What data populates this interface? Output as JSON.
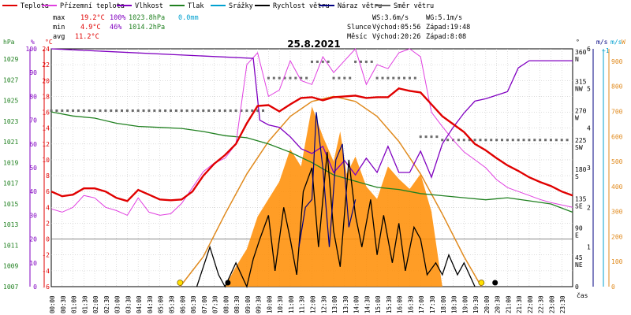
{
  "chart_data": {
    "type": "line",
    "date": "25.8.2021",
    "legend": [
      {
        "label": "Teplota",
        "color": "#e00000"
      },
      {
        "label": "Přízemní teplota",
        "color": "#e040e0"
      },
      {
        "label": "Vlhkost",
        "color": "#8000c0"
      },
      {
        "label": "Tlak",
        "color": "#208020"
      },
      {
        "label": "Srážky",
        "color": "#00a0d0"
      },
      {
        "label": "Rychlost větru",
        "color": "#000000"
      },
      {
        "label": "Náraz větru",
        "color": "#000080"
      },
      {
        "label": "Směr větru",
        "color": "#606060"
      }
    ],
    "stats": {
      "max_label": "max",
      "max_temp": "19.2°C",
      "max_hum": "100%",
      "max_press": "1023.8hPa",
      "max_rain": "0.0mm",
      "min_label": "min",
      "min_temp": "4.9°C",
      "min_hum": "46%",
      "min_press": "1014.2hPa",
      "avg_label": "avg",
      "avg_temp": "11.2°C"
    },
    "wind_info": {
      "ws": "WS:3.6m/s",
      "wg": "WG:5.1m/s",
      "sun_label": "Slunce",
      "sunrise": "Východ:05:56",
      "sunset": "Západ:19:48",
      "moon_label": "Měsíc",
      "moonrise": "Východ:20:26",
      "moonset": "Západ:8:08"
    },
    "axes": {
      "hpa_unit": "hPa",
      "pct_unit": "%",
      "c_unit": "°C",
      "deg_unit": "°",
      "ms_unit": "m/s",
      "ms_unit2": "m/s",
      "w_unit": "W",
      "time_unit": "čas",
      "hpa_ticks": [
        "1029",
        "1027",
        "1025",
        "1023",
        "1021",
        "1019",
        "1017",
        "1015",
        "1013",
        "1011",
        "1009",
        "1007"
      ],
      "pct_ticks": [
        "100",
        "90",
        "80",
        "70",
        "60",
        "50",
        "40",
        "30",
        "20",
        "10",
        "0"
      ],
      "c_ticks": [
        "24",
        "22",
        "20",
        "18",
        "16",
        "14",
        "12",
        "10",
        "8",
        "6",
        "4",
        "2",
        "0",
        "-2",
        "-4",
        "-6"
      ],
      "dir_ticks": [
        [
          "360",
          "N"
        ],
        [
          "315",
          "NW"
        ],
        [
          "270",
          "W"
        ],
        [
          "225",
          "SW"
        ],
        [
          "180",
          "S"
        ],
        [
          "135",
          "SE"
        ],
        [
          "90",
          "E"
        ],
        [
          "45",
          "NE"
        ],
        [
          "0",
          ""
        ]
      ],
      "ms_ticks": [
        "6",
        "5",
        "4",
        "3",
        "2",
        "1"
      ],
      "ms_top": "~1",
      "w_ticks": [
        "900",
        "800",
        "700",
        "600",
        "500",
        "400",
        "300",
        "200",
        "100",
        "0"
      ],
      "time_ticks": [
        "00:00",
        "00:30",
        "01:00",
        "01:30",
        "02:00",
        "02:30",
        "03:00",
        "03:30",
        "04:00",
        "04:30",
        "05:00",
        "05:30",
        "06:00",
        "06:30",
        "07:00",
        "07:30",
        "08:00",
        "08:30",
        "09:00",
        "09:30",
        "10:00",
        "10:30",
        "11:00",
        "11:30",
        "12:00",
        "12:30",
        "13:00",
        "13:30",
        "14:00",
        "14:30",
        "15:00",
        "15:30",
        "16:00",
        "16:30",
        "17:00",
        "17:30",
        "18:00",
        "18:30",
        "19:00",
        "19:30",
        "20:00",
        "20:30",
        "21:00",
        "21:30",
        "22:00",
        "22:30",
        "23:00",
        "23:30"
      ]
    },
    "series": {
      "temperature": {
        "hours": [
          0,
          0.5,
          1,
          1.5,
          2,
          2.5,
          3,
          3.5,
          4,
          4.5,
          5,
          5.5,
          6,
          6.5,
          7,
          7.5,
          8,
          8.5,
          9,
          9.5,
          10,
          10.5,
          11,
          11.5,
          12,
          12.5,
          13,
          13.5,
          14,
          14.5,
          15,
          15.5,
          16,
          16.5,
          17,
          17.5,
          18,
          18.5,
          19,
          19.5,
          20,
          20.5,
          21,
          21.5,
          22,
          22.5,
          23,
          23.5,
          24
        ],
        "values": [
          6.0,
          5.4,
          5.6,
          6.4,
          6.4,
          6.0,
          5.2,
          4.8,
          6.2,
          5.6,
          5.0,
          4.9,
          5.0,
          6.0,
          8.0,
          9.5,
          10.6,
          12.0,
          14.6,
          16.8,
          16.9,
          16.1,
          17.0,
          17.8,
          17.9,
          17.5,
          17.9,
          18.0,
          18.1,
          17.8,
          17.9,
          17.9,
          19.0,
          18.7,
          18.5,
          17.0,
          15.5,
          14.5,
          13.5,
          12.0,
          11.2,
          10.2,
          9.3,
          8.6,
          7.8,
          7.2,
          6.7,
          6.0,
          5.5
        ]
      },
      "ground_temperature": {
        "hours": [
          0,
          0.5,
          1,
          1.5,
          2,
          2.5,
          3,
          3.5,
          4,
          4.5,
          5,
          5.5,
          6,
          6.5,
          7,
          7.5,
          8,
          8.5,
          9,
          9.5,
          10,
          10.5,
          11,
          11.5,
          12,
          12.5,
          13,
          13.5,
          14,
          14.5,
          15,
          15.5,
          16,
          16.5,
          17,
          17.5,
          18,
          18.5,
          19,
          19.5,
          20,
          20.5,
          21,
          21.5,
          22,
          22.5,
          23,
          23.5,
          24
        ],
        "values": [
          3.8,
          3.4,
          4.0,
          5.5,
          5.2,
          4.0,
          3.6,
          3.0,
          5.2,
          3.4,
          3.0,
          3.2,
          4.5,
          6.5,
          8.5,
          9.6,
          10.2,
          12.0,
          22.0,
          23.5,
          18.0,
          18.8,
          22.5,
          20.0,
          19.5,
          23.0,
          21.0,
          22.5,
          24.0,
          19.5,
          22.0,
          21.5,
          23.5,
          24.0,
          23.0,
          16.0,
          14.2,
          12.5,
          11.0,
          10.0,
          9.0,
          7.5,
          6.5,
          6.0,
          5.5,
          5.0,
          4.6,
          4.3,
          4.0
        ]
      },
      "humidity": {
        "hours": [
          0,
          9.3,
          9.6,
          10,
          10.5,
          11,
          11.5,
          12,
          12.5,
          13,
          13.5,
          14,
          14.5,
          15,
          15.5,
          16,
          16.5,
          17,
          17.5,
          18,
          18.5,
          19,
          19.5,
          20,
          21,
          21.5,
          22,
          23,
          24
        ],
        "values": [
          100,
          96,
          70,
          68,
          67,
          63,
          58,
          56,
          59,
          48,
          53,
          47,
          54,
          48,
          59,
          48,
          48,
          57,
          46,
          60,
          67,
          73,
          78,
          79,
          82,
          92,
          95,
          95,
          95
        ]
      },
      "pressure": {
        "hours": [
          0,
          1,
          2,
          3,
          4,
          5,
          6,
          7,
          8,
          9,
          10,
          11,
          12,
          13,
          14,
          15,
          16,
          17,
          18,
          19,
          20,
          21,
          22,
          23,
          24
        ],
        "values": [
          1023.9,
          1023.5,
          1023.3,
          1022.8,
          1022.5,
          1022.4,
          1022.3,
          1022.0,
          1021.6,
          1021.4,
          1020.8,
          1020.0,
          1019.0,
          1017.8,
          1017.2,
          1016.6,
          1016.4,
          1016.0,
          1015.8,
          1015.6,
          1015.4,
          1015.6,
          1015.3,
          1015.0,
          1014.2
        ]
      },
      "wind_speed": {
        "hours": [
          6.7,
          7.0,
          7.3,
          7.7,
          8.0,
          8.5,
          9.0,
          9.3,
          9.6,
          10.0,
          10.3,
          10.7,
          11.0,
          11.3,
          11.6,
          12.0,
          12.3,
          12.7,
          13.0,
          13.3,
          13.7,
          14.0,
          14.3,
          14.7,
          15.0,
          15.3,
          15.7,
          16.0,
          16.3,
          16.7,
          17.0,
          17.3,
          17.7,
          18.0,
          18.3,
          18.7,
          19.0,
          19.5
        ],
        "values": [
          0.0,
          0.5,
          1.0,
          0.3,
          0.0,
          0.6,
          0.0,
          0.7,
          1.2,
          1.8,
          0.4,
          2.0,
          1.2,
          0.3,
          2.4,
          3.0,
          1.0,
          3.4,
          1.4,
          0.5,
          3.2,
          1.8,
          1.0,
          2.2,
          0.8,
          1.8,
          0.6,
          1.6,
          0.4,
          1.5,
          1.2,
          0.3,
          0.6,
          0.3,
          0.8,
          0.3,
          0.6,
          0.0
        ]
      },
      "wind_gust": {
        "hours": [
          11.4,
          11.7,
          12.0,
          12.2,
          12.5,
          12.8,
          13.1,
          13.4,
          13.7,
          14.0
        ],
        "values": [
          1.0,
          2.0,
          2.2,
          4.4,
          3.0,
          1.0,
          3.2,
          3.6,
          1.5,
          2.2
        ]
      },
      "solar_radiation": {
        "hours": [
          8.0,
          8.5,
          9.0,
          9.5,
          10.0,
          10.5,
          11.0,
          11.5,
          12.0,
          12.5,
          13.0,
          13.3,
          13.6,
          14.0,
          14.5,
          15.0,
          15.5,
          16.0,
          16.5,
          17.0,
          17.5,
          18.0
        ],
        "values": [
          0,
          80,
          150,
          280,
          350,
          420,
          550,
          480,
          720,
          600,
          500,
          620,
          450,
          520,
          400,
          350,
          480,
          430,
          390,
          450,
          300,
          0
        ]
      },
      "solar_theoretical": {
        "hours": [
          5.93,
          7,
          8,
          9,
          10,
          11,
          12,
          13,
          14,
          15,
          16,
          17,
          18,
          19,
          19.8
        ],
        "values": [
          0,
          120,
          290,
          450,
          580,
          680,
          740,
          760,
          740,
          680,
          580,
          450,
          290,
          120,
          0
        ]
      },
      "wind_direction": {
        "hours": [
          0,
          1,
          2,
          3,
          4,
          5,
          6,
          7,
          8,
          9,
          10,
          11,
          12,
          13,
          14,
          15,
          16,
          17,
          18,
          19,
          20,
          21,
          22,
          23
        ],
        "values": [
          270,
          270,
          270,
          270,
          270,
          270,
          270,
          270,
          270,
          270,
          320,
          320,
          345,
          320,
          345,
          320,
          320,
          230,
          225,
          225,
          225,
          225,
          225,
          225
        ]
      }
    },
    "markers": {
      "sunrise_hour": 5.93,
      "sunset_hour": 19.8,
      "moonset_hour": 8.13,
      "moonrise_hour": 20.43
    }
  }
}
